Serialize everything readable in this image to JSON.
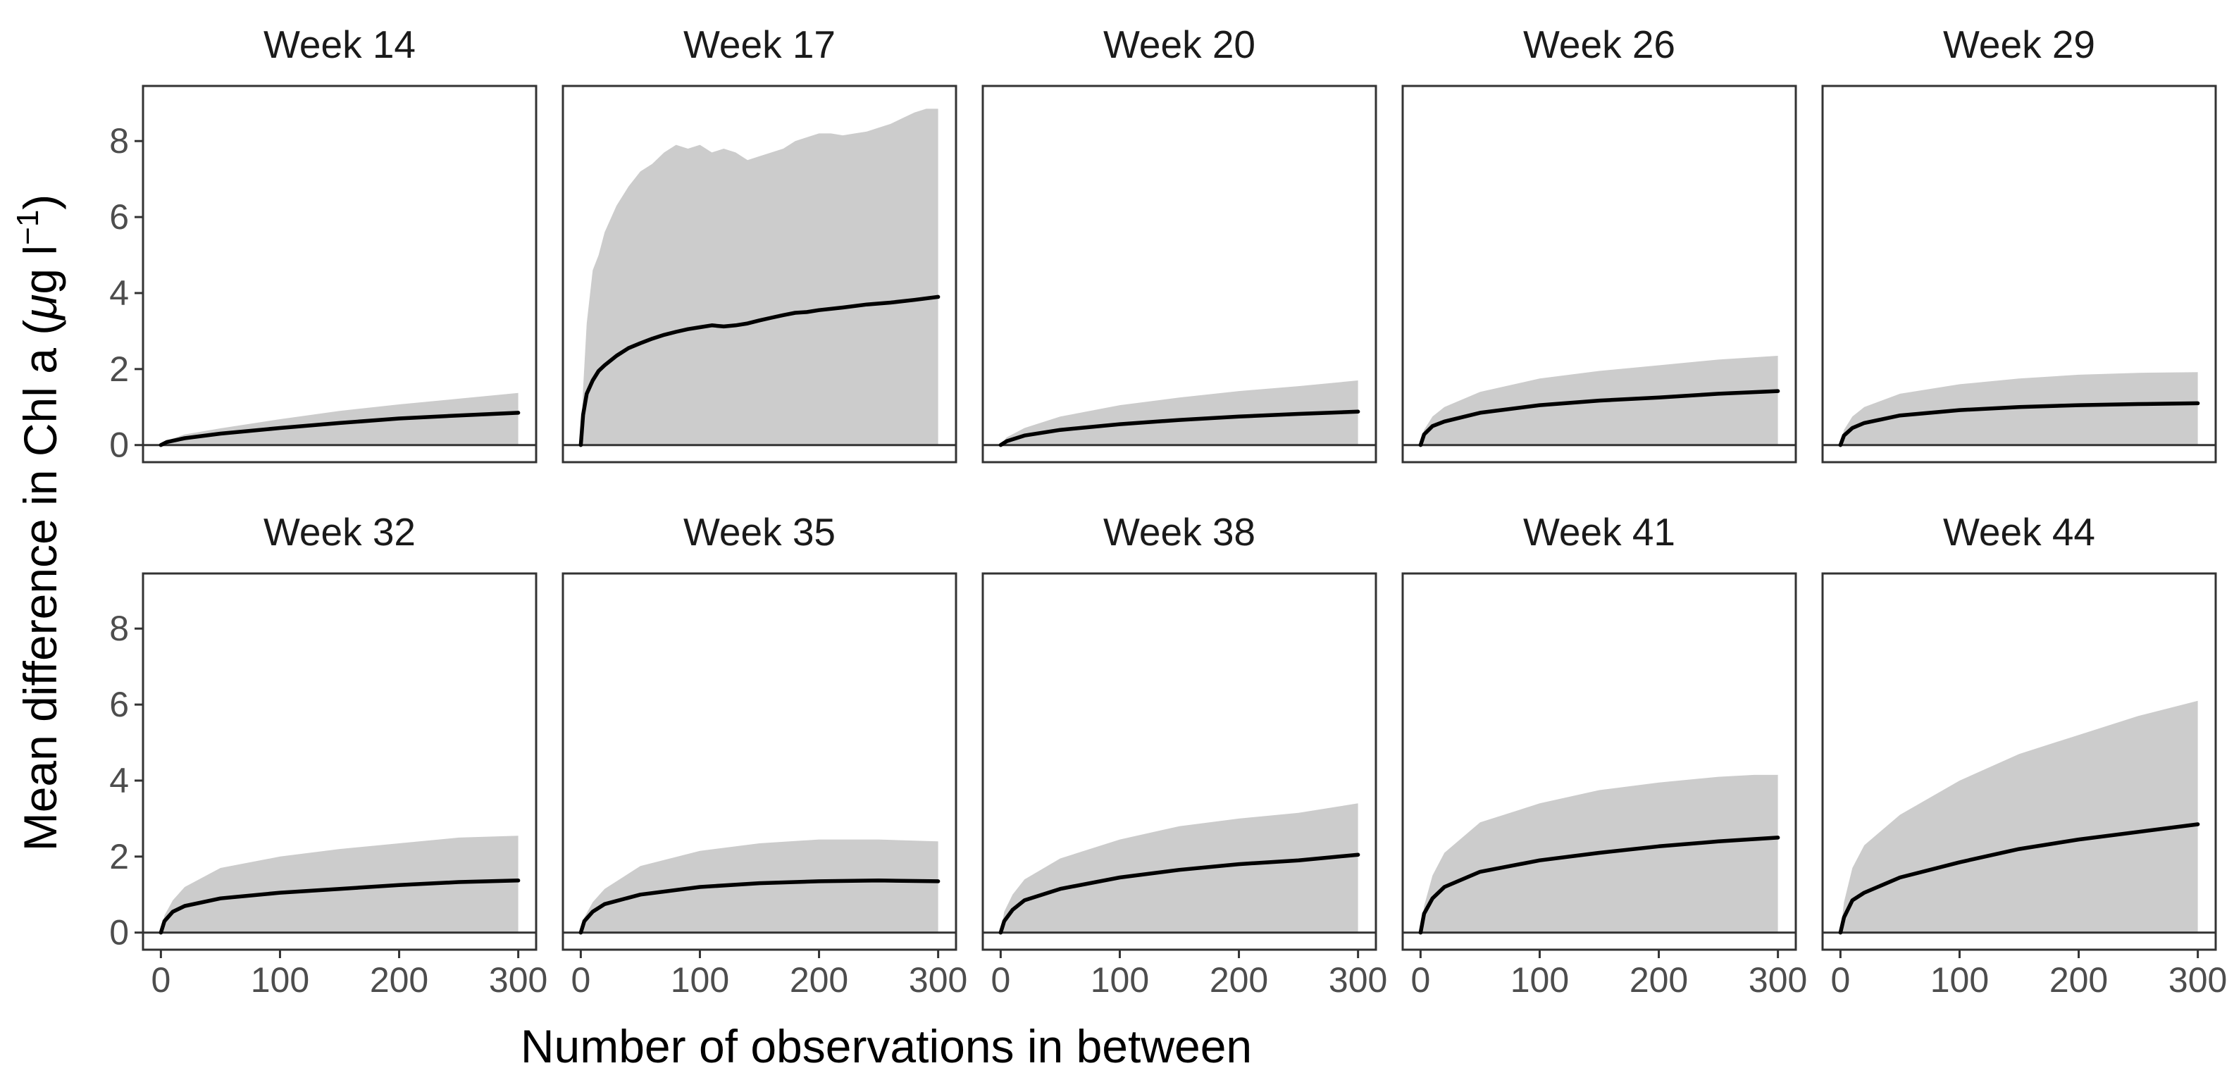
{
  "chart_data": {
    "type": "area",
    "layout": "facets-2x5",
    "xlabel": "Number of observations in between",
    "ylabel_main": "Mean difference in Chl a (",
    "ylabel_mu": "μ",
    "ylabel_unit": "g l",
    "ylabel_sup": "−1",
    "ylabel_close": ")",
    "xlim": [
      -15,
      315
    ],
    "ylim": [
      -0.45,
      9.45
    ],
    "x_ticks": [
      0,
      100,
      200,
      300
    ],
    "y_ticks": [
      0,
      2,
      4,
      6,
      8
    ],
    "hline": 0,
    "series_description": "black line = mean difference; grey ribbon = upper band",
    "panels": [
      {
        "title": "Week 14",
        "upper": [
          [
            0,
            0
          ],
          [
            5,
            0.12
          ],
          [
            20,
            0.28
          ],
          [
            50,
            0.44
          ],
          [
            100,
            0.68
          ],
          [
            150,
            0.9
          ],
          [
            200,
            1.07
          ],
          [
            250,
            1.22
          ],
          [
            300,
            1.37
          ]
        ],
        "mean": [
          [
            0,
            0
          ],
          [
            5,
            0.08
          ],
          [
            20,
            0.18
          ],
          [
            50,
            0.3
          ],
          [
            100,
            0.45
          ],
          [
            150,
            0.58
          ],
          [
            200,
            0.7
          ],
          [
            250,
            0.78
          ],
          [
            300,
            0.85
          ]
        ]
      },
      {
        "title": "Week 17",
        "upper": [
          [
            0,
            0
          ],
          [
            2,
            1.5
          ],
          [
            5,
            3.2
          ],
          [
            10,
            4.6
          ],
          [
            15,
            5.0
          ],
          [
            20,
            5.6
          ],
          [
            30,
            6.3
          ],
          [
            40,
            6.8
          ],
          [
            50,
            7.2
          ],
          [
            60,
            7.4
          ],
          [
            70,
            7.7
          ],
          [
            80,
            7.9
          ],
          [
            90,
            7.8
          ],
          [
            100,
            7.9
          ],
          [
            110,
            7.7
          ],
          [
            120,
            7.8
          ],
          [
            130,
            7.7
          ],
          [
            140,
            7.5
          ],
          [
            150,
            7.6
          ],
          [
            160,
            7.7
          ],
          [
            170,
            7.8
          ],
          [
            180,
            8.0
          ],
          [
            190,
            8.1
          ],
          [
            200,
            8.2
          ],
          [
            210,
            8.2
          ],
          [
            220,
            8.15
          ],
          [
            230,
            8.2
          ],
          [
            240,
            8.25
          ],
          [
            250,
            8.35
          ],
          [
            260,
            8.45
          ],
          [
            270,
            8.6
          ],
          [
            280,
            8.75
          ],
          [
            290,
            8.85
          ],
          [
            300,
            8.85
          ]
        ],
        "mean": [
          [
            0,
            0
          ],
          [
            2,
            0.8
          ],
          [
            5,
            1.35
          ],
          [
            10,
            1.7
          ],
          [
            15,
            1.95
          ],
          [
            20,
            2.1
          ],
          [
            30,
            2.35
          ],
          [
            40,
            2.55
          ],
          [
            50,
            2.68
          ],
          [
            60,
            2.8
          ],
          [
            70,
            2.9
          ],
          [
            80,
            2.98
          ],
          [
            90,
            3.05
          ],
          [
            100,
            3.1
          ],
          [
            110,
            3.15
          ],
          [
            120,
            3.12
          ],
          [
            130,
            3.15
          ],
          [
            140,
            3.2
          ],
          [
            150,
            3.28
          ],
          [
            160,
            3.35
          ],
          [
            170,
            3.42
          ],
          [
            180,
            3.48
          ],
          [
            190,
            3.5
          ],
          [
            200,
            3.55
          ],
          [
            220,
            3.62
          ],
          [
            240,
            3.7
          ],
          [
            260,
            3.75
          ],
          [
            280,
            3.82
          ],
          [
            300,
            3.9
          ]
        ]
      },
      {
        "title": "Week 20",
        "upper": [
          [
            0,
            0
          ],
          [
            5,
            0.2
          ],
          [
            20,
            0.45
          ],
          [
            50,
            0.75
          ],
          [
            100,
            1.05
          ],
          [
            150,
            1.25
          ],
          [
            200,
            1.42
          ],
          [
            250,
            1.55
          ],
          [
            300,
            1.7
          ]
        ],
        "mean": [
          [
            0,
            0
          ],
          [
            5,
            0.1
          ],
          [
            20,
            0.25
          ],
          [
            50,
            0.4
          ],
          [
            100,
            0.55
          ],
          [
            150,
            0.66
          ],
          [
            200,
            0.75
          ],
          [
            250,
            0.82
          ],
          [
            300,
            0.88
          ]
        ]
      },
      {
        "title": "Week 26",
        "upper": [
          [
            0,
            0
          ],
          [
            3,
            0.4
          ],
          [
            10,
            0.75
          ],
          [
            20,
            1.0
          ],
          [
            50,
            1.4
          ],
          [
            100,
            1.75
          ],
          [
            150,
            1.95
          ],
          [
            200,
            2.1
          ],
          [
            250,
            2.25
          ],
          [
            300,
            2.35
          ]
        ],
        "mean": [
          [
            0,
            0
          ],
          [
            3,
            0.28
          ],
          [
            10,
            0.5
          ],
          [
            20,
            0.62
          ],
          [
            50,
            0.85
          ],
          [
            100,
            1.05
          ],
          [
            150,
            1.17
          ],
          [
            200,
            1.25
          ],
          [
            250,
            1.35
          ],
          [
            300,
            1.42
          ]
        ]
      },
      {
        "title": "Week 29",
        "upper": [
          [
            0,
            0
          ],
          [
            3,
            0.4
          ],
          [
            10,
            0.75
          ],
          [
            20,
            1.0
          ],
          [
            50,
            1.35
          ],
          [
            100,
            1.6
          ],
          [
            150,
            1.75
          ],
          [
            200,
            1.85
          ],
          [
            250,
            1.9
          ],
          [
            300,
            1.92
          ]
        ],
        "mean": [
          [
            0,
            0
          ],
          [
            3,
            0.25
          ],
          [
            10,
            0.45
          ],
          [
            20,
            0.58
          ],
          [
            50,
            0.78
          ],
          [
            100,
            0.92
          ],
          [
            150,
            1.0
          ],
          [
            200,
            1.05
          ],
          [
            250,
            1.08
          ],
          [
            300,
            1.1
          ]
        ]
      },
      {
        "title": "Week 32",
        "upper": [
          [
            0,
            0
          ],
          [
            3,
            0.45
          ],
          [
            10,
            0.85
          ],
          [
            20,
            1.2
          ],
          [
            50,
            1.7
          ],
          [
            100,
            2.0
          ],
          [
            150,
            2.2
          ],
          [
            200,
            2.35
          ],
          [
            250,
            2.5
          ],
          [
            300,
            2.55
          ]
        ],
        "mean": [
          [
            0,
            0
          ],
          [
            3,
            0.3
          ],
          [
            10,
            0.55
          ],
          [
            20,
            0.7
          ],
          [
            50,
            0.9
          ],
          [
            100,
            1.05
          ],
          [
            150,
            1.15
          ],
          [
            200,
            1.25
          ],
          [
            250,
            1.33
          ],
          [
            300,
            1.37
          ]
        ]
      },
      {
        "title": "Week 35",
        "upper": [
          [
            0,
            0
          ],
          [
            3,
            0.4
          ],
          [
            10,
            0.8
          ],
          [
            20,
            1.15
          ],
          [
            50,
            1.75
          ],
          [
            100,
            2.15
          ],
          [
            150,
            2.35
          ],
          [
            200,
            2.45
          ],
          [
            250,
            2.45
          ],
          [
            300,
            2.4
          ]
        ],
        "mean": [
          [
            0,
            0
          ],
          [
            3,
            0.3
          ],
          [
            10,
            0.55
          ],
          [
            20,
            0.75
          ],
          [
            50,
            1.0
          ],
          [
            100,
            1.2
          ],
          [
            150,
            1.3
          ],
          [
            200,
            1.35
          ],
          [
            250,
            1.37
          ],
          [
            300,
            1.35
          ]
        ]
      },
      {
        "title": "Week 38",
        "upper": [
          [
            0,
            0
          ],
          [
            3,
            0.55
          ],
          [
            10,
            1.0
          ],
          [
            20,
            1.4
          ],
          [
            50,
            1.95
          ],
          [
            100,
            2.45
          ],
          [
            150,
            2.8
          ],
          [
            200,
            3.0
          ],
          [
            250,
            3.15
          ],
          [
            300,
            3.4
          ]
        ],
        "mean": [
          [
            0,
            0
          ],
          [
            3,
            0.3
          ],
          [
            10,
            0.6
          ],
          [
            20,
            0.85
          ],
          [
            50,
            1.15
          ],
          [
            100,
            1.45
          ],
          [
            150,
            1.65
          ],
          [
            200,
            1.8
          ],
          [
            250,
            1.9
          ],
          [
            300,
            2.05
          ]
        ]
      },
      {
        "title": "Week 41",
        "upper": [
          [
            0,
            0
          ],
          [
            3,
            0.7
          ],
          [
            10,
            1.5
          ],
          [
            20,
            2.1
          ],
          [
            50,
            2.9
          ],
          [
            100,
            3.4
          ],
          [
            150,
            3.75
          ],
          [
            200,
            3.95
          ],
          [
            250,
            4.1
          ],
          [
            280,
            4.15
          ],
          [
            300,
            4.15
          ]
        ],
        "mean": [
          [
            0,
            0
          ],
          [
            3,
            0.5
          ],
          [
            10,
            0.9
          ],
          [
            20,
            1.2
          ],
          [
            50,
            1.6
          ],
          [
            100,
            1.9
          ],
          [
            150,
            2.1
          ],
          [
            200,
            2.27
          ],
          [
            250,
            2.4
          ],
          [
            300,
            2.5
          ]
        ]
      },
      {
        "title": "Week 44",
        "upper": [
          [
            0,
            0
          ],
          [
            3,
            0.8
          ],
          [
            10,
            1.7
          ],
          [
            20,
            2.3
          ],
          [
            50,
            3.1
          ],
          [
            100,
            4.0
          ],
          [
            150,
            4.7
          ],
          [
            200,
            5.2
          ],
          [
            250,
            5.7
          ],
          [
            300,
            6.1
          ]
        ],
        "mean": [
          [
            0,
            0
          ],
          [
            3,
            0.4
          ],
          [
            10,
            0.85
          ],
          [
            20,
            1.05
          ],
          [
            50,
            1.45
          ],
          [
            100,
            1.85
          ],
          [
            150,
            2.2
          ],
          [
            200,
            2.45
          ],
          [
            250,
            2.65
          ],
          [
            300,
            2.85
          ]
        ]
      }
    ]
  }
}
